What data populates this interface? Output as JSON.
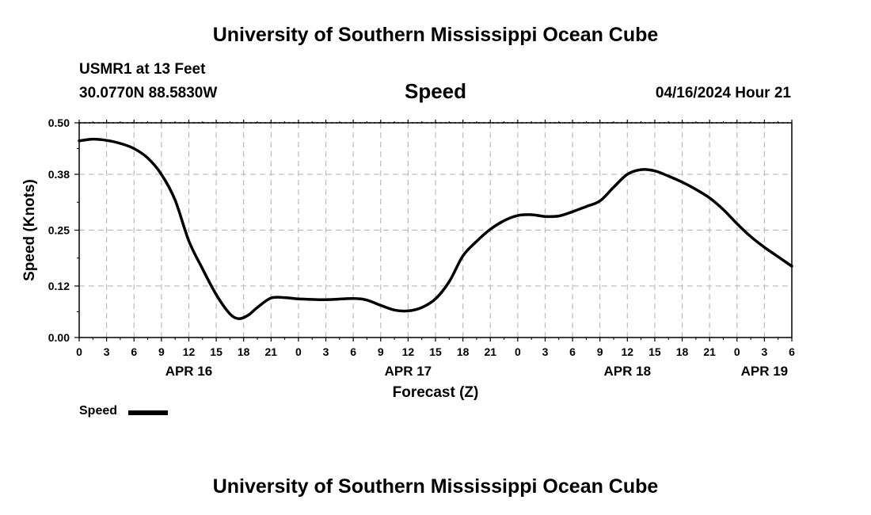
{
  "header": {
    "title": "University of Southern Mississippi Ocean Cube",
    "station": "USMR1 at 13 Feet",
    "coords": "30.0770N  88.5830W",
    "variable": "Speed",
    "datetime": "04/16/2024 Hour 21"
  },
  "footer": {
    "title": "University of Southern Mississippi Ocean Cube"
  },
  "legend": {
    "label": "Speed"
  },
  "colors": {
    "line": "#000000",
    "grid": "#bbbbbb",
    "axis": "#000000"
  },
  "chart_data": {
    "type": "line",
    "title": "Speed",
    "xlabel": "Forecast (Z)",
    "ylabel": "Speed (Knots)",
    "xlim": [
      0,
      78
    ],
    "ylim": [
      0.0,
      0.5
    ],
    "grid": true,
    "yticks": [
      0.0,
      0.12,
      0.25,
      0.38,
      0.5
    ],
    "ytick_labels": [
      "0.00",
      "0.12",
      "0.25",
      "0.38",
      "0.50"
    ],
    "xticks": [
      0,
      3,
      6,
      9,
      12,
      15,
      18,
      21,
      24,
      27,
      30,
      33,
      36,
      39,
      42,
      45,
      48,
      51,
      54,
      57,
      60,
      63,
      66,
      69,
      72,
      75,
      78
    ],
    "xtick_labels": [
      "0",
      "3",
      "6",
      "9",
      "12",
      "15",
      "18",
      "21",
      "0",
      "3",
      "6",
      "9",
      "12",
      "15",
      "18",
      "21",
      "0",
      "3",
      "6",
      "9",
      "12",
      "15",
      "18",
      "21",
      "0",
      "3",
      "6"
    ],
    "date_labels": [
      {
        "x": 12,
        "label": "APR 16"
      },
      {
        "x": 36,
        "label": "APR 17"
      },
      {
        "x": 60,
        "label": "APR 18"
      },
      {
        "x": 75,
        "label": "APR 19"
      }
    ],
    "series": [
      {
        "name": "Speed",
        "x": [
          0,
          1.5,
          3,
          4.5,
          6,
          7.5,
          9,
          10.5,
          12,
          13.5,
          15,
          16.5,
          17.5,
          18.5,
          19.5,
          21,
          22.5,
          24,
          27,
          30,
          31.5,
          33,
          34.5,
          36,
          37.5,
          39,
          40.5,
          42,
          43.5,
          45,
          46.5,
          48,
          49.5,
          51,
          52.5,
          54,
          55.5,
          57,
          58.5,
          60,
          61.5,
          63,
          64.5,
          66,
          67.5,
          69,
          70.5,
          72,
          73.5,
          75,
          76.5,
          78
        ],
        "values": [
          0.458,
          0.462,
          0.459,
          0.452,
          0.44,
          0.418,
          0.38,
          0.32,
          0.225,
          0.16,
          0.1,
          0.055,
          0.044,
          0.052,
          0.07,
          0.092,
          0.093,
          0.09,
          0.088,
          0.091,
          0.087,
          0.075,
          0.064,
          0.062,
          0.07,
          0.09,
          0.13,
          0.19,
          0.224,
          0.252,
          0.272,
          0.284,
          0.286,
          0.282,
          0.283,
          0.293,
          0.305,
          0.318,
          0.35,
          0.38,
          0.391,
          0.388,
          0.376,
          0.362,
          0.345,
          0.325,
          0.298,
          0.265,
          0.235,
          0.21,
          0.188,
          0.166
        ]
      }
    ]
  }
}
